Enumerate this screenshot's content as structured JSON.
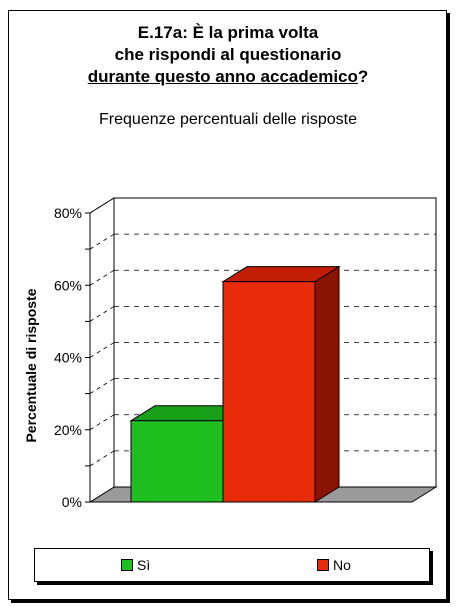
{
  "chart_data": {
    "type": "bar",
    "title_lines": [
      "E.17a: È la prima volta",
      "che rispondi al questionario"
    ],
    "title_underlined": "durante questo anno accademico",
    "title_suffix": "?",
    "subtitle": "Frequenze percentuali delle risposte",
    "ylabel": "Percentuale di risposte",
    "xlabel": "",
    "ylim": [
      0,
      80
    ],
    "yticks": [
      "0%",
      "20%",
      "40%",
      "60%",
      "80%"
    ],
    "grid": true,
    "categories": [
      "Sì",
      "No"
    ],
    "values": [
      22.5,
      61
    ],
    "colors": {
      "Sì": {
        "front": "#1fbf1f",
        "top": "#17a017",
        "side": "#0e7a0e"
      },
      "No": {
        "front": "#e82b0a",
        "top": "#c21d05",
        "side": "#8a1404"
      }
    },
    "legend": {
      "position": "bottom",
      "entries": [
        "Sì",
        "No"
      ]
    }
  }
}
